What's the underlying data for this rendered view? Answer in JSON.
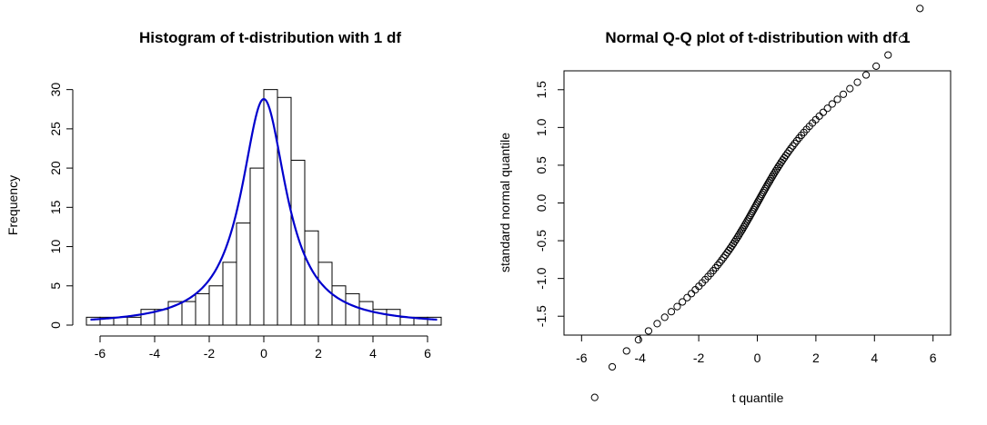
{
  "chart_data": [
    {
      "type": "bar",
      "title": "Histogram of t-distribution with 1 df",
      "xlabel": "",
      "ylabel": "Frequency",
      "xlim": [
        -6.6,
        6.6
      ],
      "ylim": [
        0,
        31
      ],
      "x_ticks": [
        -6,
        -4,
        -2,
        0,
        2,
        4,
        6
      ],
      "y_ticks": [
        0,
        5,
        10,
        15,
        20,
        25,
        30
      ],
      "bin_edges": [
        -6.5,
        -6,
        -5.5,
        -5,
        -4.5,
        -4,
        -3.5,
        -3,
        -2.5,
        -2,
        -1.5,
        -1,
        -0.5,
        0,
        0.5,
        1,
        1.5,
        2,
        2.5,
        3,
        3.5,
        4,
        4.5,
        5,
        5.5,
        6,
        6.5
      ],
      "values": [
        1,
        1,
        1,
        1,
        2,
        2,
        3,
        3,
        4,
        5,
        8,
        13,
        20,
        30,
        29,
        21,
        12,
        8,
        5,
        4,
        3,
        2,
        2,
        1,
        1,
        1
      ],
      "overlay": {
        "type": "line",
        "color": "#0000cd",
        "function": "cauchy_density_scaled",
        "peak": 28.8
      },
      "bar_fill": "#ffffff",
      "bar_stroke": "#000000",
      "grid": false
    },
    {
      "type": "scatter",
      "title": "Normal Q-Q plot of t-distribution with df 1",
      "xlabel": "t quantile",
      "ylabel": "standard normal quantile",
      "xlim": [
        -6.6,
        6.6
      ],
      "ylim": [
        -1.75,
        1.75
      ],
      "x_ticks": [
        -6,
        -4,
        -2,
        0,
        2,
        4,
        6
      ],
      "y_ticks": [
        -1.5,
        -1.0,
        -0.5,
        0.0,
        0.5,
        1.0,
        1.5
      ],
      "y_tick_labels": [
        "-1.5",
        "-1.0",
        "-0.5",
        "0.0",
        "0.5",
        "1.0",
        "1.5"
      ],
      "n_points": 100,
      "marker": "open-circle",
      "point_color": "#000000",
      "grid": false
    }
  ]
}
